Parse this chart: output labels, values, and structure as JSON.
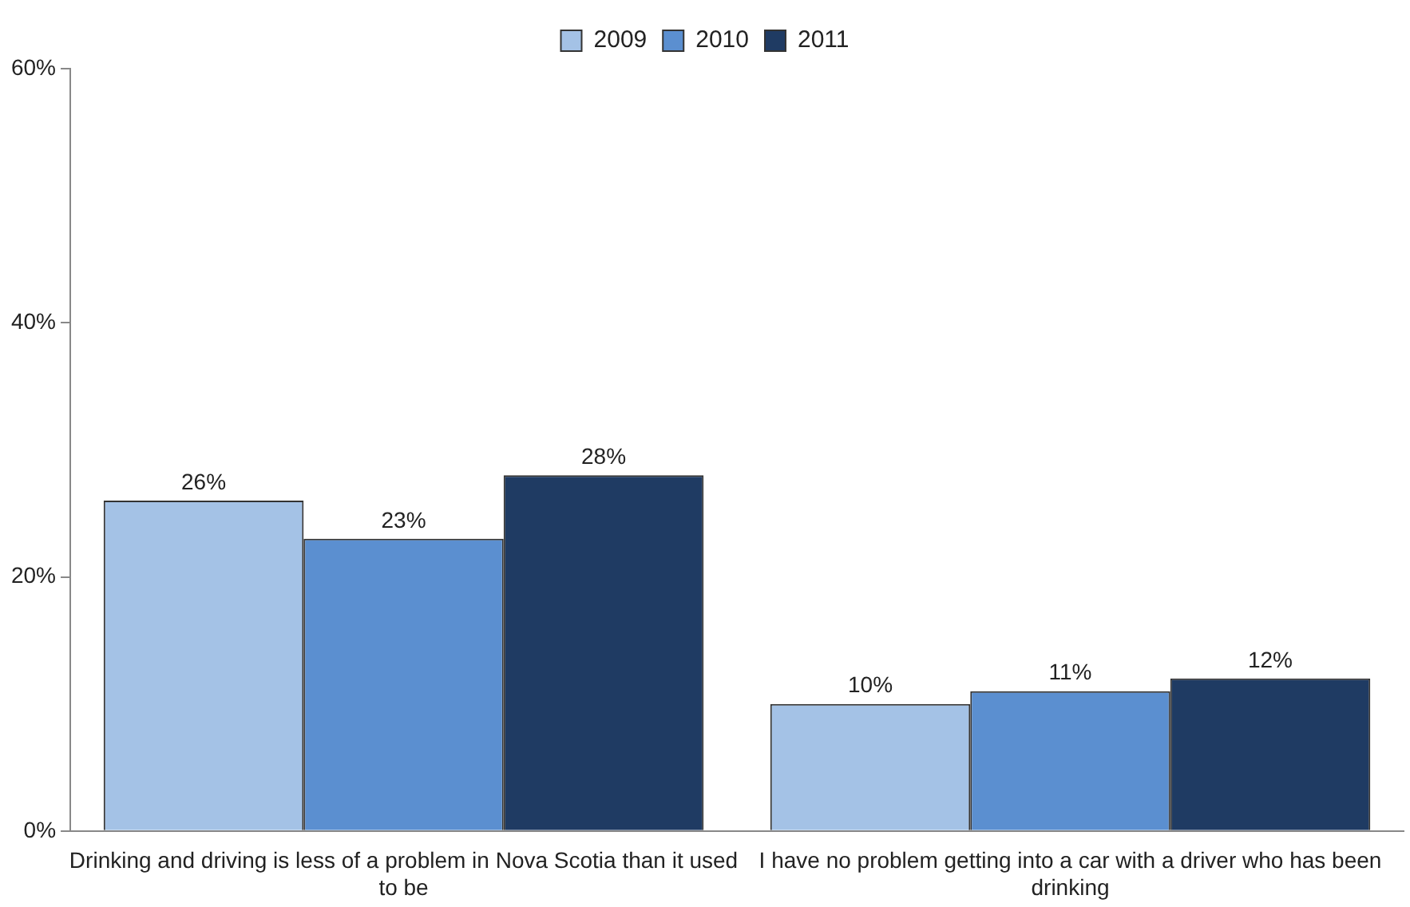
{
  "chart_data": {
    "type": "bar",
    "categories": [
      "Drinking and driving is less of a problem in Nova Scotia than it used to be",
      "I have no problem getting into a car with a driver who has been drinking"
    ],
    "series": [
      {
        "name": "2009",
        "color": "#a4c2e6",
        "values": [
          26,
          10
        ],
        "value_labels": [
          "26%",
          "10%"
        ]
      },
      {
        "name": "2010",
        "color": "#5b8fd0",
        "values": [
          23,
          11
        ],
        "value_labels": [
          "23%",
          "11%"
        ]
      },
      {
        "name": "2011",
        "color": "#1f3b63",
        "values": [
          28,
          12
        ],
        "value_labels": [
          "28%",
          "12%"
        ]
      }
    ],
    "ylim": [
      0,
      60
    ],
    "yticks": [
      {
        "value": 0,
        "label": "0%"
      },
      {
        "value": 20,
        "label": "20%"
      },
      {
        "value": 40,
        "label": "40%"
      },
      {
        "value": 60,
        "label": "60%"
      }
    ],
    "grid": false,
    "legend": "top"
  }
}
